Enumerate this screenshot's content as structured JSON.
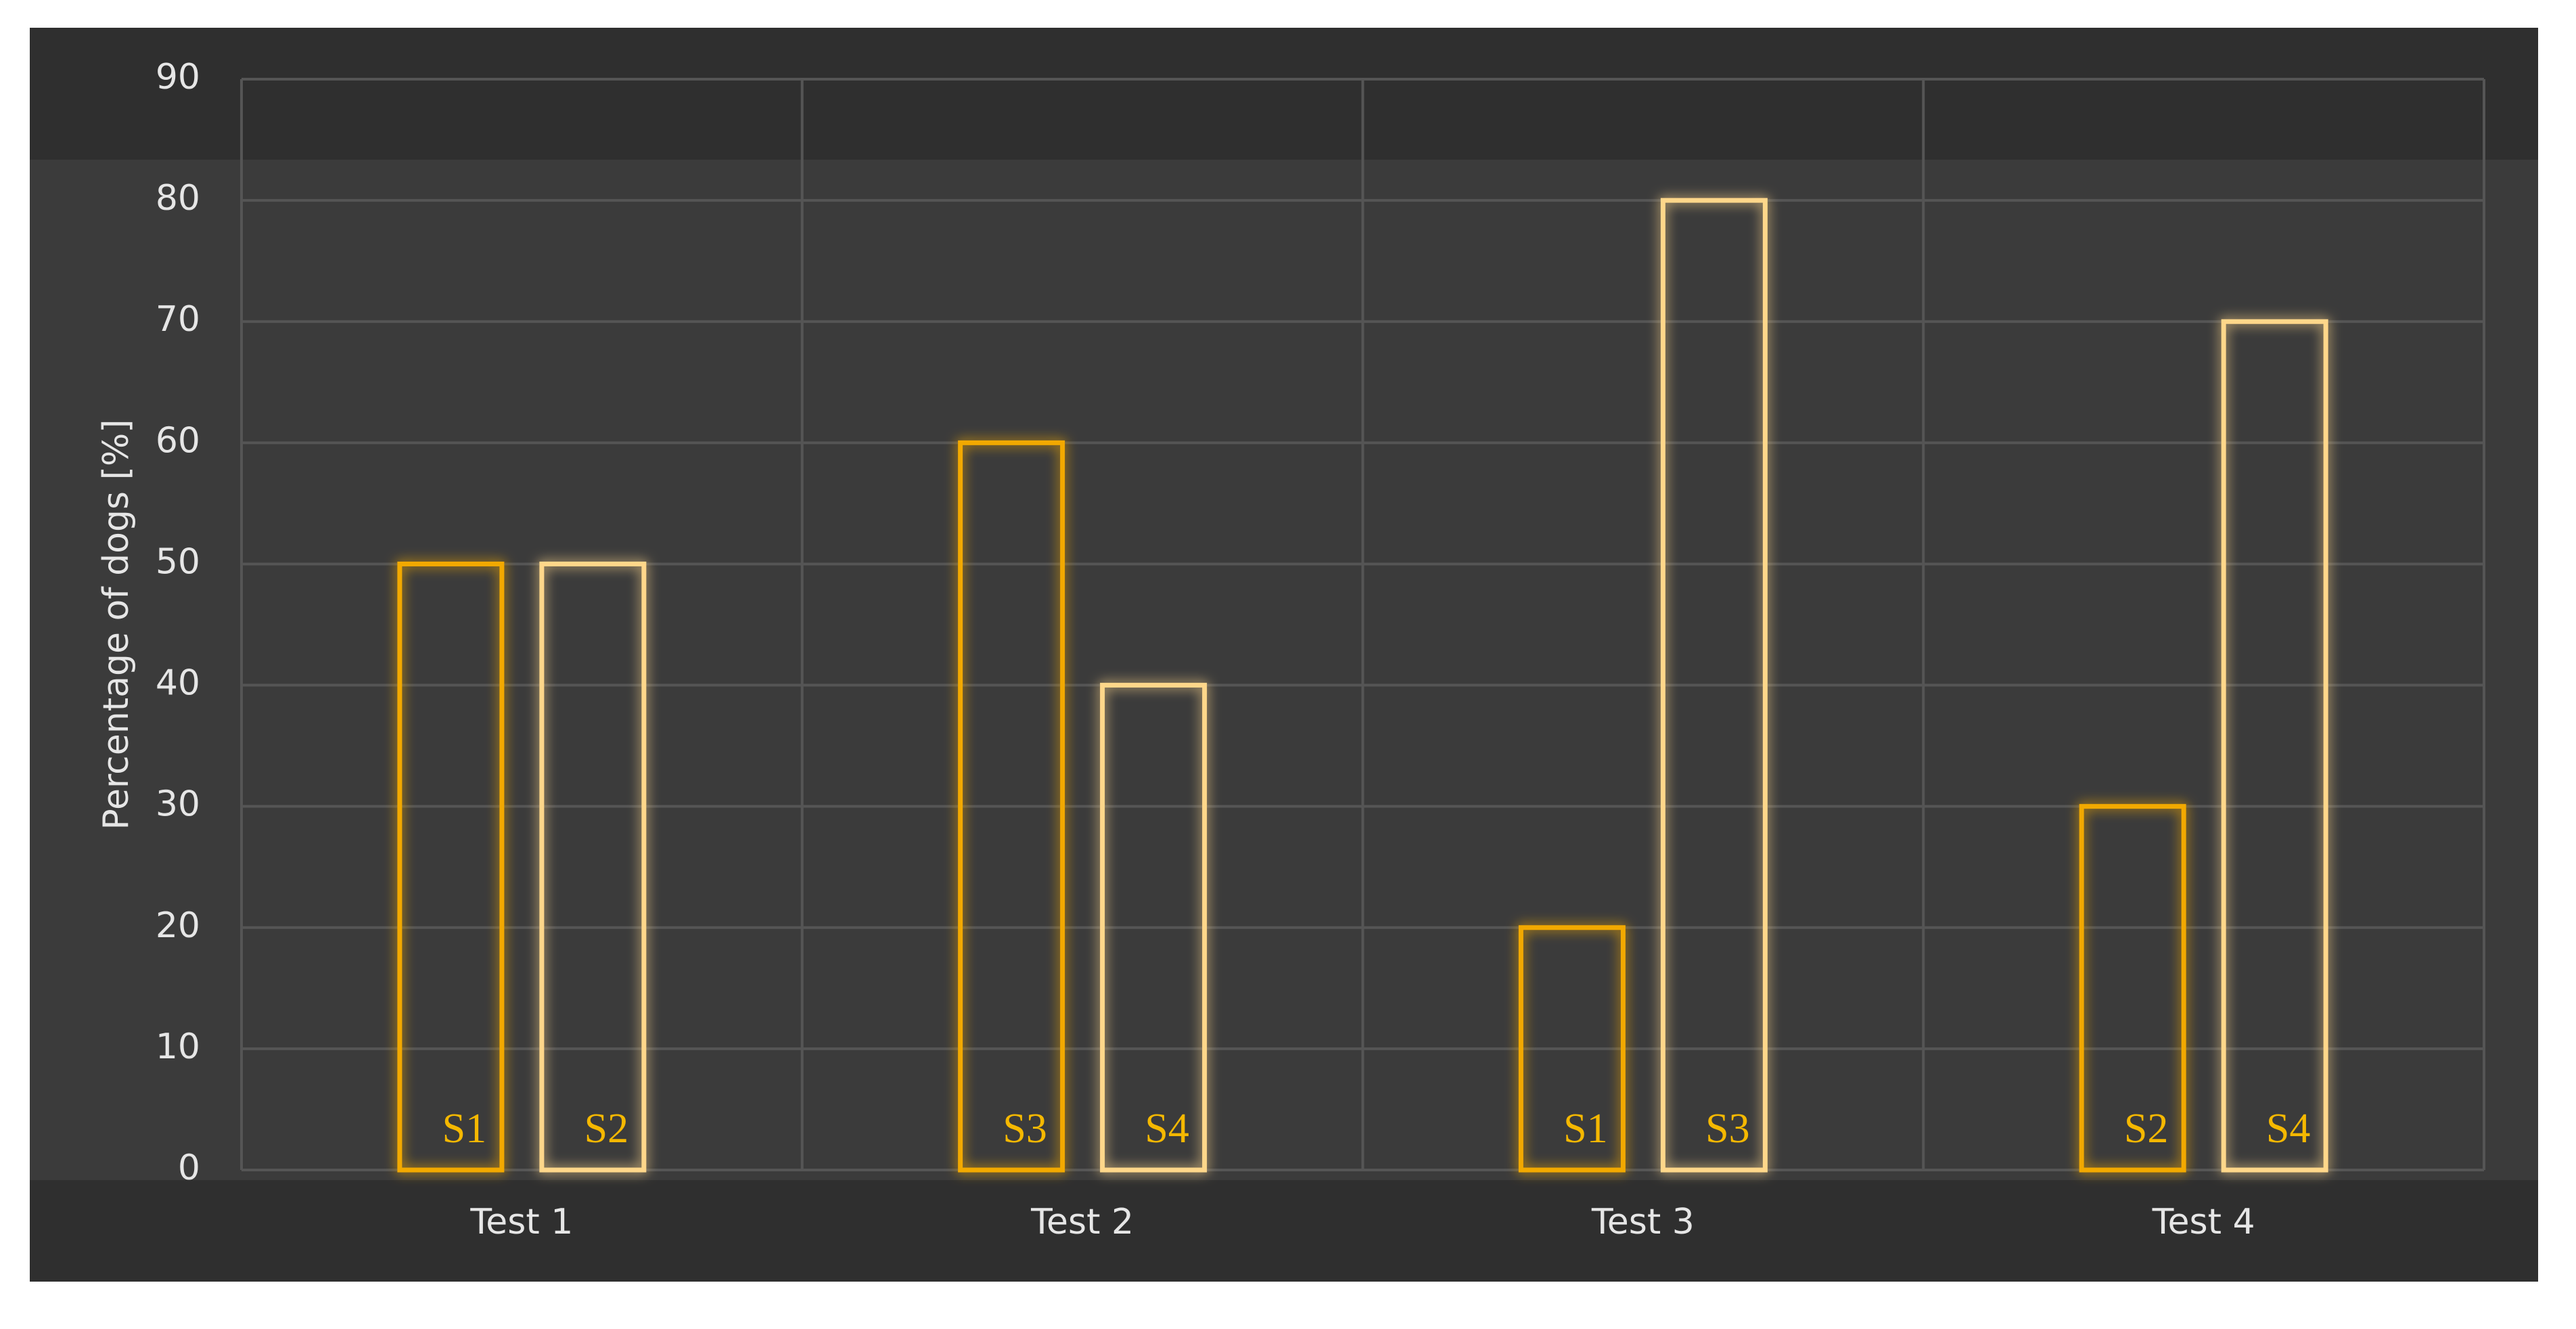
{
  "chart_data": {
    "type": "bar",
    "y_label": "Percentage of dogs [%]",
    "categories": [
      "Test 1",
      "Test 2",
      "Test 3",
      "Test 4"
    ],
    "series": [
      {
        "color": "#f2a900",
        "values": [
          50,
          60,
          20,
          30
        ],
        "labels": [
          "S1",
          "S3",
          "S1",
          "S2"
        ]
      },
      {
        "color": "#ffd78a",
        "values": [
          50,
          40,
          80,
          70
        ],
        "labels": [
          "S2",
          "S4",
          "S3",
          "S4"
        ]
      }
    ],
    "label_color": "#f5b800",
    "ylim": [
      0,
      90
    ],
    "yticks": [
      0,
      10,
      20,
      30,
      40,
      50,
      60,
      70,
      80,
      90
    ],
    "grid": true
  }
}
